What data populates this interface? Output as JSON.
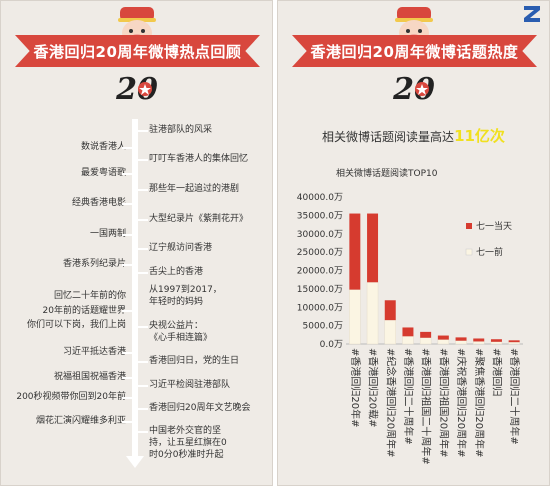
{
  "left": {
    "title": "香港回归20周年微博热点回顾",
    "logo_number": "20",
    "timeline_left": [
      "数说香港人",
      "最爱粤语歌",
      "经典香港电影",
      "一国两制",
      "香港系列纪录片",
      "回忆二十年前的你",
      "20年前的话题耀世界",
      "你们可以下岗，我们上岗",
      "习近平抵达香港",
      "祝福祖国祝福香港",
      "200秒视频带你回到20年前",
      "烟花汇演闪耀维多利亚"
    ],
    "timeline_right": [
      "驻港部队的风采",
      "叮叮车香港人的集体回忆",
      "那些年一起追过的港剧",
      "大型纪录片《紫荆花开》",
      "辽宁舰访问香港",
      "舌尖上的香港",
      "从1997到2017，",
      "年轻时的妈妈",
      "央视公益片：",
      "《心手相连篇》",
      "香港回归日，党的生日",
      "习近平检阅驻港部队",
      "香港回归20周年文艺晚会",
      "中国老外交官的坚",
      "持，让五星红旗在0",
      "时0分0秒准时升起"
    ]
  },
  "right": {
    "title": "香港回归20周年微博话题热度",
    "logo_number": "20",
    "headline_prefix": "相关微博话题阅读量高达",
    "headline_value": "11亿次"
  },
  "colors": {
    "banner": "#d8473d",
    "bar_red": "#d63b2f",
    "bar_cream": "#fbf5e3",
    "highlight": "#f0e020"
  },
  "chart_data": {
    "type": "bar",
    "stacked": true,
    "title": "相关微博话题阅读TOP10",
    "categories": [
      "#香港回归20年#",
      "#香港回归20载#",
      "#纪念香港回归20周年#",
      "#香港回归二十周年#",
      "#香港回归祖国二十周年#",
      "#香港回归祖国20周年#",
      "#庆祝香港回归20周年#",
      "#聚焦香港回归20周年#",
      "#香港回归",
      "#香港回归二十周年#"
    ],
    "series": [
      {
        "name": "七一前",
        "values": [
          14800,
          16800,
          6500,
          2100,
          1700,
          1200,
          900,
          700,
          600,
          500
        ]
      },
      {
        "name": "七一当天",
        "values": [
          20700,
          18700,
          5400,
          2400,
          1600,
          1100,
          900,
          800,
          700,
          500
        ]
      }
    ],
    "y_ticks": [
      "0.0万",
      "5000.0万",
      "10000.0万",
      "15000.0万",
      "20000.0万",
      "25000.0万",
      "30000.0万",
      "35000.0万",
      "40000.0万"
    ],
    "ylim": [
      0,
      40000
    ],
    "legend_position": "right"
  }
}
